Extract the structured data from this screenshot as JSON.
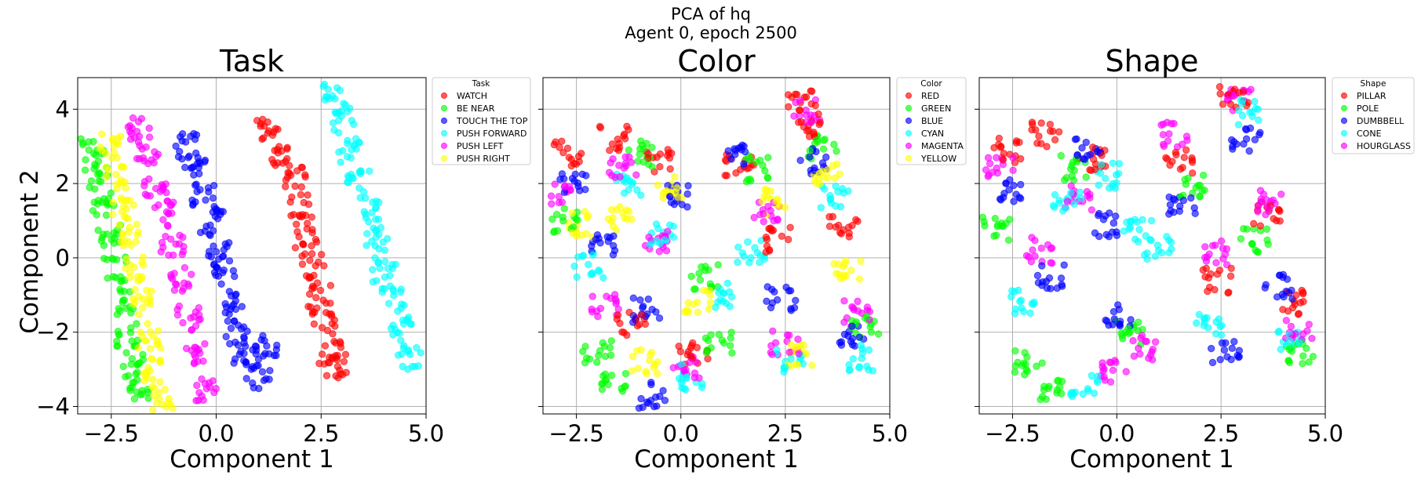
{
  "figure": {
    "suptitle_line1": "PCA of hq",
    "suptitle_line2": "Agent 0, epoch 2500"
  },
  "chart_data": [
    {
      "type": "scatter",
      "title": "Task",
      "xlabel": "Component 1",
      "ylabel": "Component 2",
      "xlim": [
        -3.3,
        5.0
      ],
      "ylim": [
        -4.2,
        4.85
      ],
      "xticks": [
        -2.5,
        0.0,
        2.5,
        5.0
      ],
      "xtick_labels": [
        "−2.5",
        "0.0",
        "2.5",
        "5.0"
      ],
      "yticks": [
        -4,
        -2,
        0,
        2,
        4
      ],
      "ytick_labels": [
        "−4",
        "−2",
        "0",
        "2",
        "4"
      ],
      "grid": true,
      "legend": {
        "title": "Task",
        "placement": "outside upper right"
      },
      "series": [
        {
          "name": "WATCH",
          "color": "#ff0000",
          "x": [
            1.25,
            1.55,
            1.85,
            2.0,
            2.15,
            2.3,
            2.45,
            2.55,
            2.7,
            2.85
          ],
          "y": [
            3.5,
            2.8,
            2.2,
            1.4,
            0.6,
            -0.2,
            -1.0,
            -1.8,
            -2.5,
            -2.9
          ]
        },
        {
          "name": "BE NEAR",
          "color": "#00ff00",
          "x": [
            -2.95,
            -2.85,
            -2.7,
            -2.55,
            -2.4,
            -2.25,
            -2.1,
            -1.95,
            -1.8
          ],
          "y": [
            2.9,
            2.2,
            1.4,
            0.6,
            -0.3,
            -1.2,
            -2.1,
            -2.9,
            -3.5
          ]
        },
        {
          "name": "TOUCH THE TOP",
          "color": "#0000ff",
          "x": [
            -0.7,
            -0.5,
            -0.3,
            -0.1,
            0.05,
            0.2,
            0.35,
            0.5,
            0.7,
            1.0,
            1.2
          ],
          "y": [
            3.0,
            2.4,
            1.7,
            1.0,
            0.3,
            -0.4,
            -1.2,
            -2.0,
            -2.6,
            -3.2,
            -2.4
          ]
        },
        {
          "name": "PUSH FORWARD",
          "color": "#00ffff",
          "x": [
            2.8,
            3.0,
            3.2,
            3.4,
            3.6,
            3.8,
            4.0,
            4.2,
            4.4,
            4.6
          ],
          "y": [
            4.45,
            3.7,
            2.9,
            2.1,
            1.3,
            0.5,
            -0.3,
            -1.1,
            -1.9,
            -2.7
          ]
        },
        {
          "name": "PUSH LEFT",
          "color": "#ff00ff",
          "x": [
            -1.85,
            -1.65,
            -1.45,
            -1.25,
            -1.05,
            -0.85,
            -0.65,
            -0.45,
            -0.25
          ],
          "y": [
            3.5,
            2.8,
            2.0,
            1.2,
            0.4,
            -0.6,
            -1.6,
            -2.6,
            -3.6
          ]
        },
        {
          "name": "PUSH RIGHT",
          "color": "#ffff00",
          "x": [
            -2.5,
            -2.35,
            -2.2,
            -2.05,
            -1.9,
            -1.75,
            -1.6,
            -1.45,
            -1.3
          ],
          "y": [
            3.0,
            2.2,
            1.4,
            0.6,
            -0.3,
            -1.2,
            -2.1,
            -3.0,
            -3.8
          ]
        }
      ]
    },
    {
      "type": "scatter",
      "title": "Color",
      "xlabel": "Component 1",
      "ylabel": "",
      "xlim": [
        -3.3,
        5.0
      ],
      "ylim": [
        -4.2,
        4.85
      ],
      "xticks": [
        -2.5,
        0.0,
        2.5,
        5.0
      ],
      "xtick_labels": [
        "−2.5",
        "0.0",
        "2.5",
        "5.0"
      ],
      "yticks": [
        -4,
        -2,
        0,
        2,
        4
      ],
      "grid": true,
      "legend": {
        "title": "Color",
        "placement": "outside upper right"
      },
      "series": [
        {
          "name": "RED",
          "color": "#ff0000",
          "x": [
            -2.7,
            -1.6,
            -0.5,
            1.4,
            2.3,
            2.9,
            3.1,
            3.9,
            -1.2,
            0.3
          ],
          "y": [
            2.8,
            3.2,
            2.6,
            2.5,
            0.5,
            4.3,
            3.6,
            0.8,
            -1.8,
            -2.6
          ]
        },
        {
          "name": "GREEN",
          "color": "#00ff00",
          "x": [
            -2.8,
            -2.0,
            -0.9,
            0.6,
            1.9,
            3.4,
            4.4,
            -1.6,
            0.9
          ],
          "y": [
            1.0,
            -2.5,
            2.8,
            -0.5,
            2.4,
            3.0,
            -1.8,
            -3.4,
            -2.3
          ]
        },
        {
          "name": "BLUE",
          "color": "#0000ff",
          "x": [
            -2.6,
            -1.9,
            -0.8,
            -0.1,
            1.3,
            2.4,
            3.2,
            4.1,
            -0.7
          ],
          "y": [
            2.1,
            0.4,
            -1.4,
            1.7,
            2.7,
            -1.1,
            2.6,
            -2.1,
            -3.7
          ]
        },
        {
          "name": "CYAN",
          "color": "#00ffff",
          "x": [
            -2.2,
            -1.3,
            0.2,
            1.7,
            2.6,
            3.7,
            4.3,
            -0.4,
            1.0
          ],
          "y": [
            -0.2,
            2.0,
            -3.2,
            0.2,
            -2.8,
            1.6,
            -2.7,
            0.7,
            -1.0
          ]
        },
        {
          "name": "MAGENTA",
          "color": "#ff00ff",
          "x": [
            -2.9,
            -1.8,
            -0.6,
            0.1,
            2.1,
            3.0,
            4.2,
            -1.4,
            2.5
          ],
          "y": [
            1.8,
            -1.3,
            0.4,
            -2.9,
            1.2,
            3.9,
            -1.5,
            2.5,
            -2.3
          ]
        },
        {
          "name": "YELLOW",
          "color": "#ffff00",
          "x": [
            -2.4,
            -1.5,
            -0.3,
            0.4,
            2.2,
            3.5,
            4.0,
            -0.9,
            2.8
          ],
          "y": [
            0.9,
            1.1,
            1.9,
            -1.2,
            1.5,
            2.2,
            -0.4,
            -2.8,
            -2.6
          ]
        }
      ]
    },
    {
      "type": "scatter",
      "title": "Shape",
      "xlabel": "Component 1",
      "ylabel": "",
      "xlim": [
        -3.3,
        5.0
      ],
      "ylim": [
        -4.2,
        4.85
      ],
      "xticks": [
        -2.5,
        0.0,
        2.5,
        5.0
      ],
      "xtick_labels": [
        "−2.5",
        "0.0",
        "2.5",
        "5.0"
      ],
      "yticks": [
        -4,
        -2,
        0,
        2,
        4
      ],
      "grid": true,
      "legend": {
        "title": "Shape",
        "placement": "outside upper right"
      },
      "series": [
        {
          "name": "PILLAR",
          "color": "#ff0000",
          "x": [
            -2.6,
            -1.7,
            -0.6,
            1.5,
            2.4,
            2.8,
            3.6,
            4.2
          ],
          "y": [
            2.9,
            3.3,
            2.7,
            2.6,
            -0.6,
            4.4,
            1.2,
            -1.2
          ]
        },
        {
          "name": "POLE",
          "color": "#00ff00",
          "x": [
            -2.9,
            -2.1,
            -1.0,
            0.3,
            1.8,
            3.3,
            4.4,
            -1.5
          ],
          "y": [
            0.8,
            -2.8,
            2.4,
            -2.0,
            1.9,
            0.5,
            -2.5,
            -3.6
          ]
        },
        {
          "name": "DUMBBELL",
          "color": "#0000ff",
          "x": [
            -2.5,
            -1.6,
            -0.7,
            0.0,
            1.6,
            2.6,
            3.1,
            3.9,
            -0.3
          ],
          "y": [
            1.8,
            -0.5,
            2.9,
            -1.6,
            1.4,
            -2.6,
            3.2,
            -0.8,
            0.9
          ]
        },
        {
          "name": "CONE",
          "color": "#00ffff",
          "x": [
            -2.3,
            -1.2,
            -0.2,
            0.5,
            1.0,
            2.2,
            3.2,
            4.1,
            -0.8
          ],
          "y": [
            -1.2,
            1.5,
            2.2,
            0.7,
            0.3,
            -1.8,
            3.9,
            -2.2,
            -3.4
          ]
        },
        {
          "name": "HOURGLASS",
          "color": "#ff00ff",
          "x": [
            -2.8,
            -1.9,
            -0.9,
            -0.1,
            1.4,
            2.3,
            3.0,
            3.7,
            4.4,
            0.6
          ],
          "y": [
            2.4,
            0.2,
            1.6,
            -3.0,
            3.3,
            0.1,
            4.2,
            1.5,
            -1.9,
            -2.4
          ]
        }
      ]
    }
  ]
}
